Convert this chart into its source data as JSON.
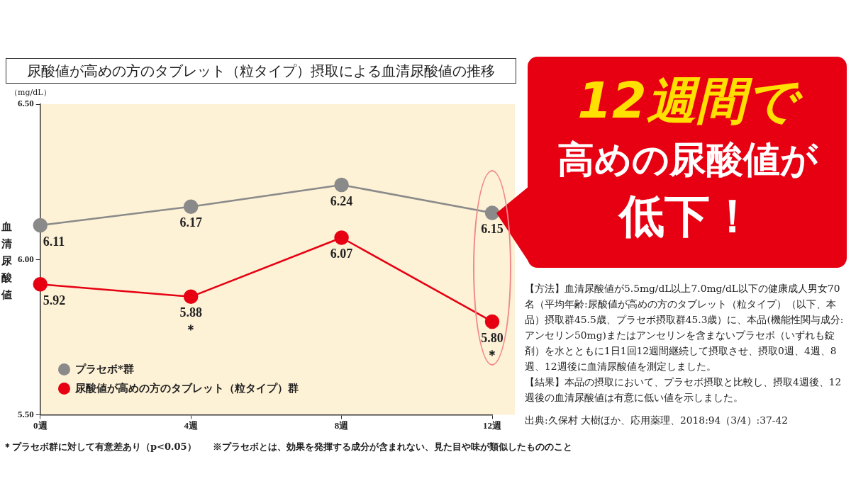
{
  "chart_data": {
    "type": "line",
    "title": "尿酸値が高めの方のタブレット（粒タイプ）摂取による血清尿酸値の推移",
    "ylabel": "血清尿酸値",
    "categories": [
      "0週",
      "4週",
      "8週",
      "12週"
    ],
    "series": [
      {
        "name": "プラセボ*群",
        "color": "#8a8a8a",
        "values": [
          6.11,
          6.17,
          6.24,
          6.15
        ],
        "value_labels": [
          "6.11",
          "6.17",
          "6.24",
          "6.15"
        ]
      },
      {
        "name": "尿酸値が高めの方のタブレット（粒タイプ）群",
        "color": "#e60012",
        "values": [
          5.92,
          5.88,
          6.07,
          5.8
        ],
        "value_labels": [
          "5.92",
          "5.88",
          "6.07",
          "5.80"
        ]
      }
    ],
    "ylim": [
      5.5,
      6.5
    ],
    "yticks": [
      {
        "value": 5.5,
        "label": "5.50"
      },
      {
        "value": 6,
        "label": "6.00"
      },
      {
        "value": 6.5,
        "label": "6.50"
      }
    ],
    "grid": false,
    "legend": "bottom left",
    "marker": "circle",
    "line_style": "solid",
    "annotations": [
      "（mg/dL）",
      "12週間で",
      "高めの尿酸値が",
      "低下！",
      "【方法】血清尿酸値が5.5mg/dL以上7.0mg/dL以下の健康成人男女70名（平均年齢:尿酸値が高めの方のタブレット（粒タイプ）（以下、本品）摂取群45.5歳、プラセボ摂取群45.3歳）に、本品(機能性関与成分:アンセリン50mg)またはアンセリンを含まないプラセボ（いずれも錠剤）を水とともに1日1回12週間継続して摂取させ、摂取0週、4週、8週、12週後に血清尿酸値を測定しました。",
      "【結果】本品の摂取において、プラセボ摂取と比較し、摂取4週後、12週後の血清尿酸値は有意に低い値を示しました。",
      "出典:久保村 大樹ほか、応用薬理、2018:94（3/4）:37-42",
      "＊プラセボ群に対して有意差あり（p<0.05）",
      "※プラセボとは、効果を発揮する成分が含まれない、見た目や味が類似したもののこと",
      {
        "text": "＊",
        "x": "4週",
        "y": 5.88
      },
      {
        "text": "＊",
        "x": "12週",
        "y": 5.8
      }
    ]
  }
}
